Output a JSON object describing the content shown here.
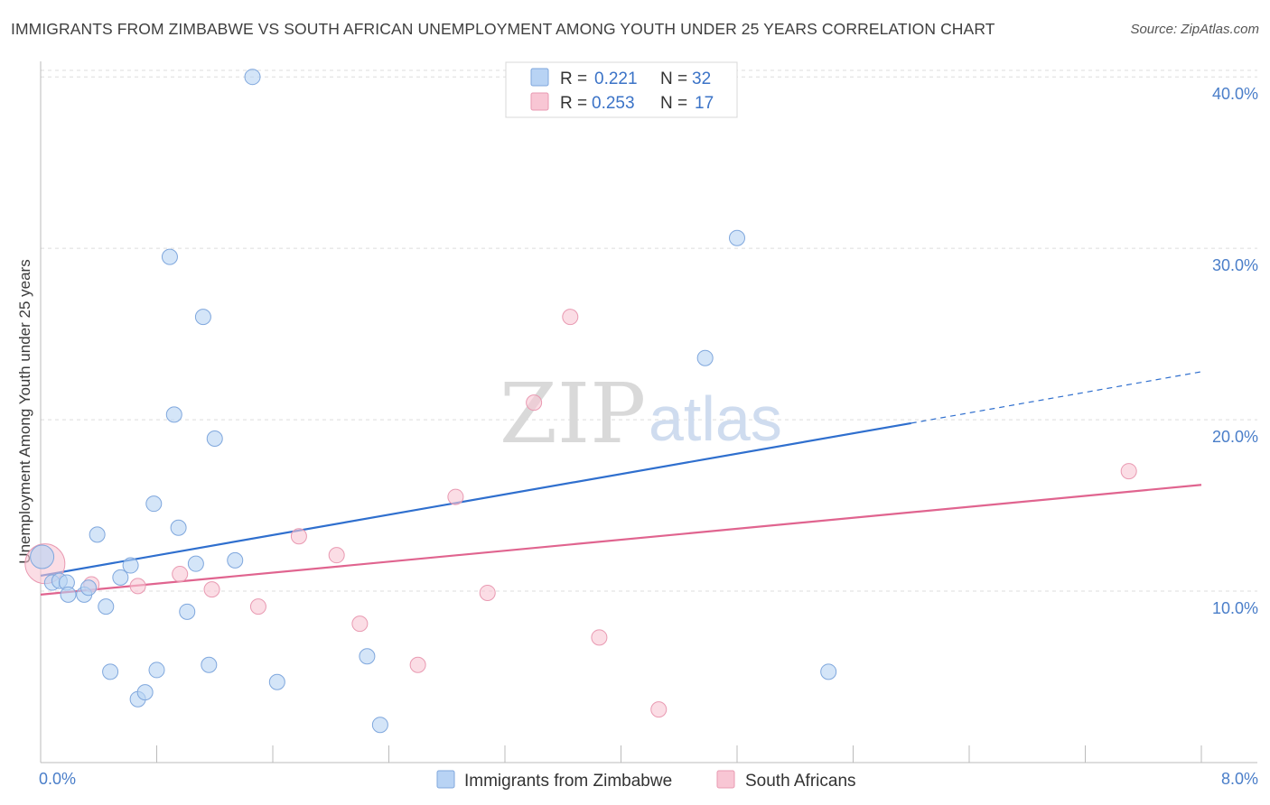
{
  "title": "IMMIGRANTS FROM ZIMBABWE VS SOUTH AFRICAN UNEMPLOYMENT AMONG YOUTH UNDER 25 YEARS CORRELATION CHART",
  "source": "Source: ZipAtlas.com",
  "watermark": {
    "zip": "ZIP",
    "atlas": "atlas"
  },
  "colors": {
    "blue_fill": "#b8d3f4",
    "blue_stroke": "#7fa7dd",
    "blue_line": "#2f6fce",
    "pink_fill": "#f8c6d4",
    "pink_stroke": "#e99ab2",
    "pink_line": "#e0648f",
    "grid": "#dddddd",
    "tick_text": "#4a7ec9"
  },
  "legend": {
    "rows": [
      {
        "r_label": "R =",
        "r_value": "0.221",
        "n_label": "N =",
        "n_value": "32"
      },
      {
        "r_label": "R =",
        "r_value": "0.253",
        "n_label": "N =",
        "n_value": "17"
      }
    ]
  },
  "bottom_legend": {
    "blue": "Immigrants from Zimbabwe",
    "pink": "South Africans"
  },
  "chart_data": {
    "type": "scatter",
    "title": "IMMIGRANTS FROM ZIMBABWE VS SOUTH AFRICAN UNEMPLOYMENT AMONG YOUTH UNDER 25 YEARS CORRELATION CHART",
    "xlabel": "",
    "ylabel": "Unemployment Among Youth under 25 years",
    "xlim": [
      0,
      8
    ],
    "ylim": [
      0,
      40.8
    ],
    "x_tick_labels": [
      "0.0%",
      "8.0%"
    ],
    "y_ticks": [
      10,
      20,
      30,
      40
    ],
    "y_tick_labels": [
      "10.0%",
      "20.0%",
      "30.0%",
      "40.0%"
    ],
    "series": [
      {
        "name": "Immigrants from Zimbabwe",
        "color": "blue",
        "R": 0.221,
        "N": 32,
        "points": [
          [
            0.01,
            12.0
          ],
          [
            0.08,
            10.5
          ],
          [
            0.13,
            10.6
          ],
          [
            0.18,
            10.5
          ],
          [
            0.19,
            9.8
          ],
          [
            0.3,
            9.8
          ],
          [
            0.33,
            10.2
          ],
          [
            0.39,
            13.3
          ],
          [
            0.45,
            9.1
          ],
          [
            0.48,
            5.3
          ],
          [
            0.55,
            10.8
          ],
          [
            0.62,
            11.5
          ],
          [
            0.67,
            3.7
          ],
          [
            0.72,
            4.1
          ],
          [
            0.78,
            15.1
          ],
          [
            0.8,
            5.4
          ],
          [
            0.89,
            29.5
          ],
          [
            0.92,
            20.3
          ],
          [
            0.95,
            13.7
          ],
          [
            1.01,
            8.8
          ],
          [
            1.07,
            11.6
          ],
          [
            1.12,
            26.0
          ],
          [
            1.16,
            5.7
          ],
          [
            1.2,
            18.9
          ],
          [
            1.34,
            11.8
          ],
          [
            1.46,
            40.0
          ],
          [
            1.63,
            4.7
          ],
          [
            2.25,
            6.2
          ],
          [
            2.34,
            2.2
          ],
          [
            4.58,
            23.6
          ],
          [
            4.8,
            30.6
          ],
          [
            5.43,
            5.3
          ]
        ],
        "trend": {
          "x": [
            0,
            6.0
          ],
          "y": [
            10.9,
            19.8
          ]
        },
        "trend_dashed": {
          "x": [
            6.0,
            8.0
          ],
          "y": [
            19.8,
            22.8
          ]
        }
      },
      {
        "name": "South Africans",
        "color": "pink",
        "R": 0.253,
        "N": 17,
        "points": [
          [
            0.03,
            11.6
          ],
          [
            0.35,
            10.4
          ],
          [
            0.67,
            10.3
          ],
          [
            0.96,
            11.0
          ],
          [
            1.18,
            10.1
          ],
          [
            1.5,
            9.1
          ],
          [
            1.78,
            13.2
          ],
          [
            2.04,
            12.1
          ],
          [
            2.2,
            8.1
          ],
          [
            2.6,
            5.7
          ],
          [
            2.86,
            15.5
          ],
          [
            3.08,
            9.9
          ],
          [
            3.4,
            21.0
          ],
          [
            3.65,
            26.0
          ],
          [
            3.85,
            7.3
          ],
          [
            4.26,
            3.1
          ],
          [
            7.5,
            17.0
          ]
        ],
        "trend": {
          "x": [
            0,
            8.0
          ],
          "y": [
            9.8,
            16.2
          ]
        }
      }
    ]
  }
}
